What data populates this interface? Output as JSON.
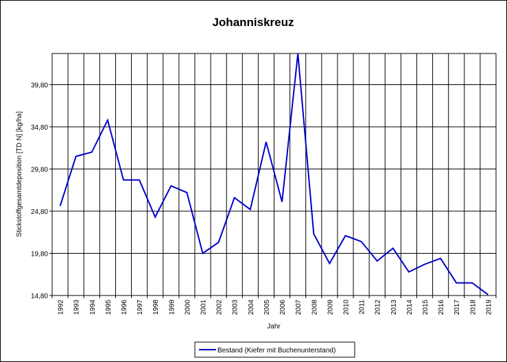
{
  "chart_data": {
    "type": "line",
    "title": "Johanniskreuz",
    "xlabel": "Jahr",
    "ylabel": "Stickstoffgesamtdeposition [TD N] [kg/ha]",
    "categories": [
      "1992",
      "1993",
      "1994",
      "1995",
      "1996",
      "1997",
      "1998",
      "1999",
      "2000",
      "2001",
      "2002",
      "2003",
      "2004",
      "2005",
      "2006",
      "2007",
      "2008",
      "2009",
      "2010",
      "2011",
      "2012",
      "2013",
      "2014",
      "2015",
      "2016",
      "2017",
      "2018",
      "2019"
    ],
    "y_ticks": [
      "14,80",
      "19,80",
      "24,80",
      "29,80",
      "34,80",
      "39,80"
    ],
    "y_tick_values": [
      14.8,
      19.8,
      24.8,
      29.8,
      34.8,
      39.8
    ],
    "ylim": [
      14.8,
      43.5
    ],
    "grid": true,
    "legend_position": "bottom-center",
    "series": [
      {
        "name": "Bestand (Kiefer mit Buchenunterstand)",
        "color": "#0000cc",
        "values": [
          25.4,
          31.3,
          31.8,
          35.6,
          28.5,
          28.5,
          24.1,
          27.8,
          27.0,
          19.8,
          21.1,
          26.4,
          25.0,
          33.0,
          25.9,
          43.5,
          22.1,
          18.6,
          21.9,
          21.2,
          18.9,
          20.4,
          17.6,
          18.5,
          19.2,
          16.3,
          16.3,
          14.9
        ]
      }
    ]
  }
}
